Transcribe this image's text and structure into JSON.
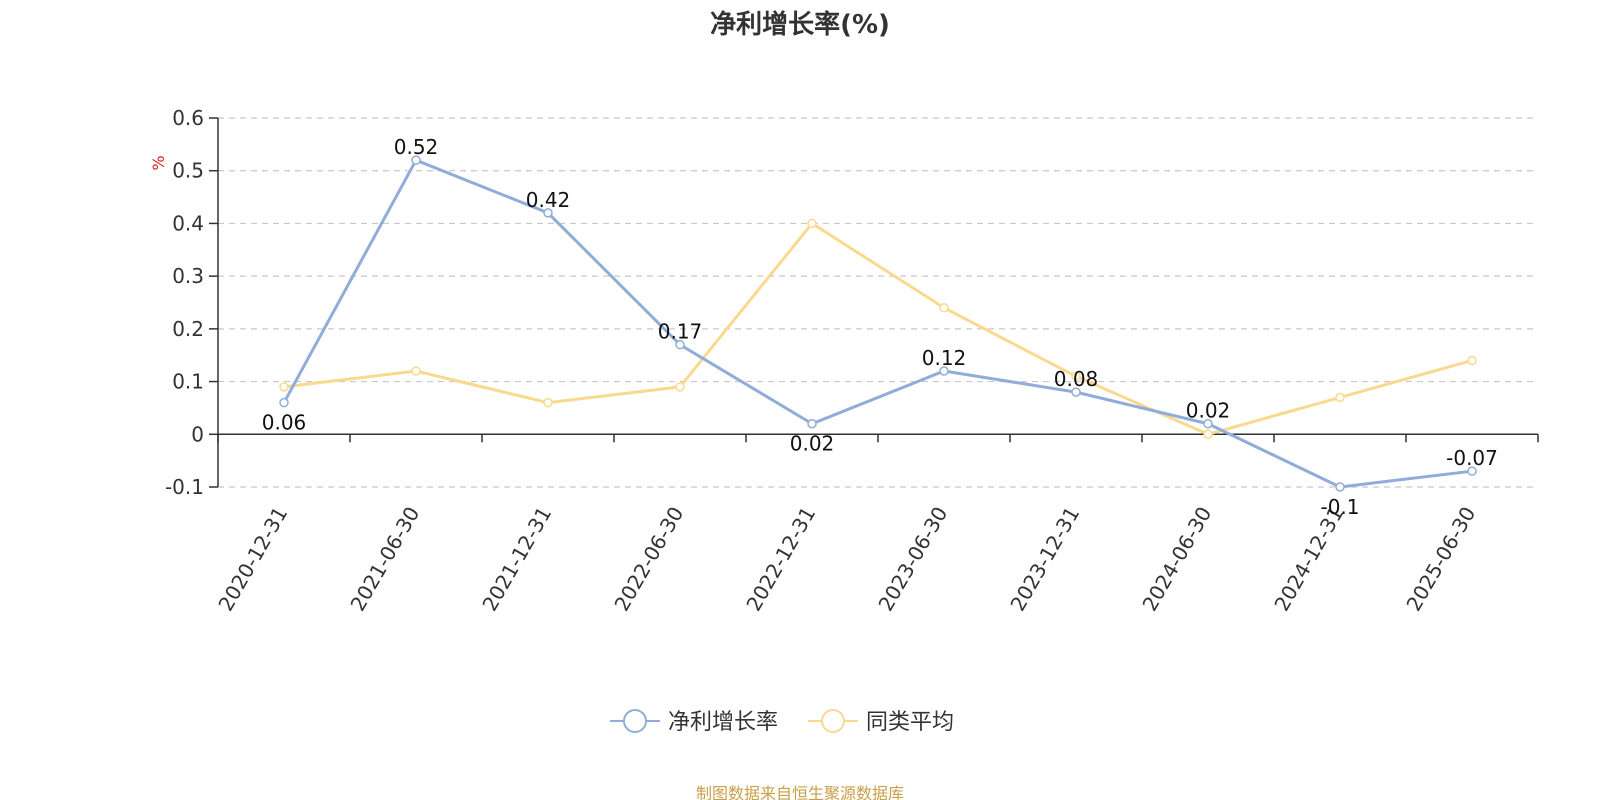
{
  "title": "净利增长率(%)",
  "source_note": "制图数据来自恒生聚源数据库",
  "colors": {
    "series_primary": "#8fadd8",
    "series_secondary": "#fad98f",
    "ylabel": "#dd2222",
    "grid": "#c8c8c8",
    "axis": "#333333"
  },
  "chart_data": {
    "type": "line",
    "title": "净利增长率(%)",
    "ylabel": "%",
    "xlabel": "",
    "categories": [
      "2020-12-31",
      "2021-06-30",
      "2021-12-31",
      "2022-06-30",
      "2022-12-31",
      "2023-06-30",
      "2023-12-31",
      "2024-06-30",
      "2024-12-31",
      "2025-06-30"
    ],
    "ylim": [
      -0.1,
      0.6
    ],
    "yticks": [
      "0.6",
      "0.5",
      "0.4",
      "0.3",
      "0.2",
      "0.1",
      "0",
      "-0.1"
    ],
    "grid": true,
    "legend_position": "bottom-center",
    "series": [
      {
        "name": "净利增长率",
        "values": [
          0.06,
          0.52,
          0.42,
          0.17,
          0.02,
          0.12,
          0.08,
          0.02,
          -0.1,
          -0.07
        ],
        "labels": [
          "0.06",
          "0.52",
          "0.42",
          "0.17",
          "0.02",
          "0.12",
          "0.08",
          "0.02",
          "-0.1",
          "-0.07"
        ]
      },
      {
        "name": "同类平均",
        "values": [
          0.09,
          0.12,
          0.06,
          0.09,
          0.4,
          0.24,
          0.11,
          0.0,
          0.07,
          0.14
        ]
      }
    ]
  }
}
